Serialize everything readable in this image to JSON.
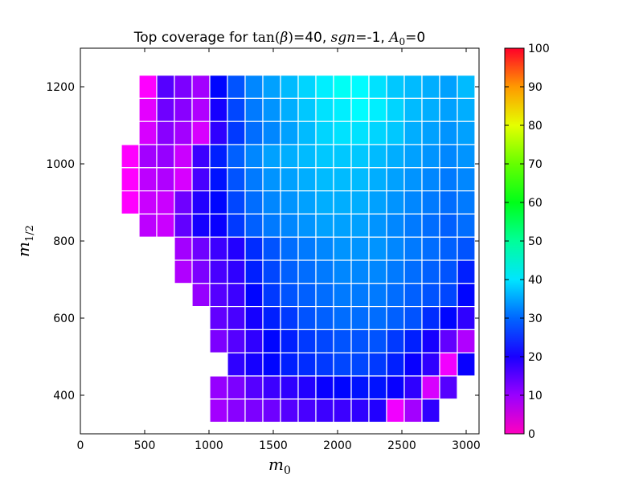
{
  "chart_data": {
    "type": "heatmap",
    "title": {
      "prefix": "Top coverage for ",
      "tan_func": "tan",
      "tan_open": "(",
      "beta": "β",
      "tan_close": ")",
      "tan_value": "=40, ",
      "sgn": "sgn",
      "sgn_value": "=-1, ",
      "a_symbol": "A",
      "a_sub": "0",
      "a_value": "=0"
    },
    "xlabel": {
      "symbol": "m",
      "sub": "0"
    },
    "ylabel": {
      "symbol": "m",
      "sub": "1/2"
    },
    "xlim": [
      0,
      3100
    ],
    "ylim": [
      300,
      1300
    ],
    "x_ticks": [
      0,
      500,
      1000,
      1500,
      2000,
      2500,
      3000
    ],
    "y_ticks": [
      400,
      600,
      800,
      1000,
      1200
    ],
    "cell_width": 137.5,
    "cell_height": 60,
    "colorbar": {
      "min": 0,
      "max": 100,
      "ticks": [
        0,
        10,
        20,
        30,
        40,
        50,
        60,
        70,
        80,
        90,
        100
      ],
      "colormap": "gist_rainbow_r"
    },
    "grid": false,
    "rows": [
      {
        "y": 1200,
        "x_start": 525,
        "values": [
          5,
          18,
          15,
          12,
          25,
          31,
          35,
          37,
          39,
          41,
          43,
          45,
          44,
          42,
          40,
          39,
          38,
          37,
          39
        ]
      },
      {
        "y": 1140,
        "x_start": 525,
        "values": [
          7,
          16,
          14,
          11,
          23,
          30,
          34,
          36,
          38,
          40,
          42,
          43,
          44,
          43,
          41,
          39,
          38,
          37,
          38
        ]
      },
      {
        "y": 1080,
        "x_start": 525,
        "values": [
          8,
          14,
          12,
          8,
          21,
          29,
          33,
          35,
          37,
          39,
          41,
          42,
          42,
          41,
          40,
          38,
          37,
          36,
          37
        ]
      },
      {
        "y": 1020,
        "x_start": 387.5,
        "values": [
          5,
          12,
          13,
          9,
          20,
          27,
          32,
          35,
          37,
          38,
          39,
          40,
          40,
          40,
          39,
          38,
          37,
          36,
          35,
          36
        ]
      },
      {
        "y": 960,
        "x_start": 387.5,
        "values": [
          5,
          10,
          11,
          8,
          19,
          26,
          31,
          34,
          36,
          37,
          38,
          39,
          39,
          39,
          38,
          37,
          36,
          35,
          34,
          35
        ]
      },
      {
        "y": 900,
        "x_start": 387.5,
        "values": [
          5,
          9,
          9,
          16,
          22,
          25,
          30,
          33,
          35,
          36,
          37,
          38,
          38,
          38,
          37,
          36,
          35,
          34,
          33,
          34
        ]
      },
      {
        "y": 840,
        "x_start": 525,
        "values": [
          10,
          9,
          17,
          23,
          24,
          29,
          32,
          34,
          35,
          36,
          37,
          37,
          37,
          36,
          35,
          34,
          33,
          32,
          33
        ]
      },
      {
        "y": 780,
        "x_start": 800,
        "values": [
          12,
          16,
          20,
          22,
          28,
          31,
          33,
          34,
          35,
          36,
          36,
          36,
          35,
          34,
          33,
          32,
          31
        ]
      },
      {
        "y": 720,
        "x_start": 800,
        "values": [
          11,
          15,
          19,
          21,
          27,
          30,
          32,
          33,
          34,
          35,
          35,
          35,
          34,
          33,
          32,
          31,
          27
        ]
      },
      {
        "y": 660,
        "x_start": 937.5,
        "values": [
          13,
          18,
          20,
          25,
          29,
          31,
          32,
          33,
          34,
          34,
          34,
          33,
          32,
          31,
          30,
          25
        ]
      },
      {
        "y": 600,
        "x_start": 1075,
        "values": [
          17,
          19,
          23,
          27,
          29,
          31,
          32,
          33,
          33,
          33,
          32,
          31,
          28,
          25,
          21
        ]
      },
      {
        "y": 540,
        "x_start": 1075,
        "values": [
          15,
          18,
          21,
          25,
          27,
          29,
          30,
          31,
          31,
          31,
          29,
          27,
          23,
          17,
          11
        ]
      },
      {
        "y": 480,
        "x_start": 1212.5,
        "values": [
          21,
          23,
          25,
          27,
          28,
          29,
          30,
          30,
          29,
          27,
          24,
          21,
          6,
          24
        ]
      },
      {
        "y": 420,
        "x_start": 1075,
        "values": [
          13,
          15,
          18,
          20,
          21,
          22,
          24,
          25,
          26,
          26,
          24,
          21,
          8,
          18
        ]
      },
      {
        "y": 360,
        "x_start": 1075,
        "values": [
          12,
          14,
          15,
          16,
          18,
          19,
          20,
          20,
          21,
          22,
          6,
          12,
          21
        ]
      }
    ]
  }
}
